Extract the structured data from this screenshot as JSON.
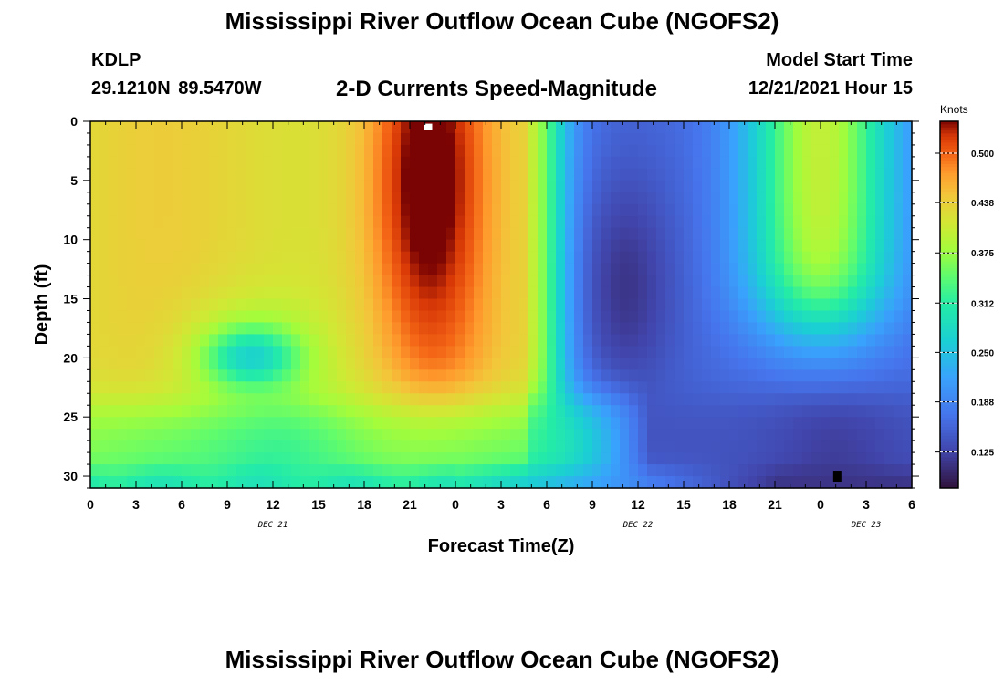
{
  "header": {
    "title": "Mississippi River Outflow Ocean Cube (NGOFS2)",
    "station": "KDLP",
    "coordinates": "29.1210N  89.5470W",
    "subtitle": "2-D Currents Speed-Magnitude",
    "model_start_label": "Model Start Time",
    "model_start_value": "12/21/2021 Hour 15"
  },
  "footer": {
    "title": "Mississippi River Outflow Ocean Cube (NGOFS2)"
  },
  "chart_data": {
    "type": "heatmap",
    "title": "2-D Currents Speed-Magnitude",
    "xlabel": "Forecast Time(Z)",
    "ylabel": "Depth (ft)",
    "x_range_hours": [
      0,
      54
    ],
    "y_range_ft": [
      0,
      31
    ],
    "y_inverted": true,
    "x_tick_labels": [
      "0",
      "3",
      "6",
      "9",
      "12",
      "15",
      "18",
      "21",
      "0",
      "3",
      "6",
      "9",
      "12",
      "15",
      "18",
      "21",
      "0",
      "3",
      "6"
    ],
    "y_tick_labels": [
      "0",
      "5",
      "10",
      "15",
      "20",
      "25",
      "30"
    ],
    "y_ticks": [
      0,
      5,
      10,
      15,
      20,
      25,
      30
    ],
    "date_labels": [
      {
        "label": "DEC 21",
        "hour": 12
      },
      {
        "label": "DEC 22",
        "hour": 36
      },
      {
        "label": "DEC 23",
        "hour": 51
      }
    ],
    "colorbar": {
      "unit": "Knots",
      "min": 0.08,
      "max": 0.54,
      "tick_labels": [
        "0.500",
        "0.438",
        "0.375",
        "0.312",
        "0.250",
        "0.188",
        "0.125"
      ],
      "tick_values": [
        0.5,
        0.438,
        0.375,
        0.312,
        0.25,
        0.188,
        0.125
      ]
    },
    "grid": false,
    "markers": [
      {
        "type": "white-square",
        "hour": 22.2,
        "depth_ft": 0.2
      },
      {
        "type": "black-square",
        "hour": 49.1,
        "depth_ft": 30
      }
    ],
    "speed_profile_knots": [
      {
        "hour": 0,
        "surface": 0.44,
        "mid": 0.4,
        "deep": 0.36
      },
      {
        "hour": 6,
        "surface": 0.45,
        "mid": 0.42,
        "deep": 0.37
      },
      {
        "hour": 10,
        "surface": 0.44,
        "mid": 0.31,
        "deep": 0.35
      },
      {
        "hour": 16,
        "surface": 0.46,
        "mid": 0.41,
        "deep": 0.35
      },
      {
        "hour": 22,
        "surface": 0.53,
        "mid": 0.47,
        "deep": 0.38
      },
      {
        "hour": 27,
        "surface": 0.47,
        "mid": 0.45,
        "deep": 0.34
      },
      {
        "hour": 30,
        "surface": 0.3,
        "mid": 0.3,
        "deep": 0.31
      },
      {
        "hour": 33,
        "surface": 0.18,
        "mid": 0.16,
        "deep": 0.25
      },
      {
        "hour": 36,
        "surface": 0.15,
        "mid": 0.12,
        "deep": 0.2
      },
      {
        "hour": 42,
        "surface": 0.25,
        "mid": 0.18,
        "deep": 0.14
      },
      {
        "hour": 48,
        "surface": 0.41,
        "mid": 0.32,
        "deep": 0.12
      },
      {
        "hour": 54,
        "surface": 0.3,
        "mid": 0.26,
        "deep": 0.13
      }
    ]
  }
}
